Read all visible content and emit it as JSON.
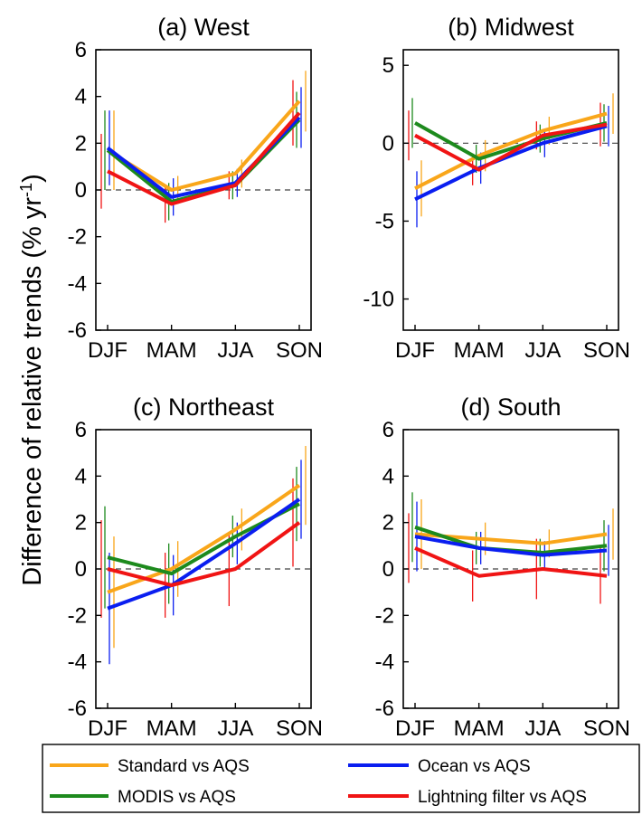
{
  "ylabel_main": "Difference of relative trends (% yr",
  "ylabel_sup": "-1",
  "ylabel_close": ")",
  "colors": {
    "Standard vs AQS": "#f9a61a",
    "Ocean vs AQS": "#0a1ef0",
    "MODIS vs AQS": "#1d8a1d",
    "Lightning filter vs AQS": "#f01414",
    "zero_line": "#444444"
  },
  "legend": [
    {
      "name": "Standard vs AQS",
      "key": "standard"
    },
    {
      "name": "Ocean vs AQS",
      "key": "ocean"
    },
    {
      "name": "MODIS vs AQS",
      "key": "modis"
    },
    {
      "name": "Lightning filter vs AQS",
      "key": "lightning"
    }
  ],
  "chart_data": [
    {
      "type": "line",
      "title": "(a) West",
      "categories": [
        "DJF",
        "MAM",
        "JJA",
        "SON"
      ],
      "ylim": [
        -6,
        6
      ],
      "yticks": [
        -6,
        -4,
        -2,
        0,
        2,
        4,
        6
      ],
      "yticklabels": [
        "-6",
        "-4",
        "-2",
        "0",
        "2",
        "4",
        "6"
      ],
      "series": [
        {
          "name": "Standard vs AQS",
          "values": [
            1.7,
            0.0,
            0.7,
            3.8
          ],
          "err": [
            1.7,
            0.6,
            0.6,
            1.3
          ]
        },
        {
          "name": "MODIS vs AQS",
          "values": [
            1.7,
            -0.5,
            0.2,
            3.0
          ],
          "err": [
            1.7,
            0.8,
            0.6,
            1.2
          ]
        },
        {
          "name": "Ocean vs AQS",
          "values": [
            1.8,
            -0.3,
            0.3,
            3.1
          ],
          "err": [
            1.6,
            0.8,
            0.6,
            1.3
          ]
        },
        {
          "name": "Lightning filter vs AQS",
          "values": [
            0.8,
            -0.6,
            0.2,
            3.3
          ],
          "err": [
            1.6,
            0.8,
            0.6,
            1.4
          ]
        }
      ]
    },
    {
      "type": "line",
      "title": "(b) Midwest",
      "categories": [
        "DJF",
        "MAM",
        "JJA",
        "SON"
      ],
      "ylim": [
        -12,
        6
      ],
      "yticks": [
        -10,
        -5,
        0,
        5
      ],
      "yticklabels": [
        "-10",
        "-5",
        "0",
        "5"
      ],
      "series": [
        {
          "name": "Standard vs AQS",
          "values": [
            -2.9,
            -0.8,
            0.8,
            1.9
          ],
          "err": [
            1.8,
            1.0,
            0.9,
            1.3
          ]
        },
        {
          "name": "MODIS vs AQS",
          "values": [
            1.3,
            -1.0,
            0.3,
            1.3
          ],
          "err": [
            1.6,
            0.9,
            0.9,
            1.2
          ]
        },
        {
          "name": "Ocean vs AQS",
          "values": [
            -3.6,
            -1.6,
            0.0,
            1.1
          ],
          "err": [
            1.8,
            1.0,
            0.9,
            1.3
          ]
        },
        {
          "name": "Lightning filter vs AQS",
          "values": [
            0.5,
            -1.7,
            0.5,
            1.2
          ],
          "err": [
            1.6,
            1.0,
            0.9,
            1.4
          ]
        }
      ]
    },
    {
      "type": "line",
      "title": "(c) Northeast",
      "categories": [
        "DJF",
        "MAM",
        "JJA",
        "SON"
      ],
      "ylim": [
        -6,
        6
      ],
      "yticks": [
        -6,
        -4,
        -2,
        0,
        2,
        4,
        6
      ],
      "yticklabels": [
        "-6",
        "-4",
        "-2",
        "0",
        "2",
        "4",
        "6"
      ],
      "series": [
        {
          "name": "Standard vs AQS",
          "values": [
            -1.0,
            0.0,
            1.7,
            3.6
          ],
          "err": [
            2.4,
            1.2,
            0.9,
            1.7
          ]
        },
        {
          "name": "MODIS vs AQS",
          "values": [
            0.5,
            -0.2,
            1.4,
            2.8
          ],
          "err": [
            2.2,
            1.3,
            0.9,
            1.6
          ]
        },
        {
          "name": "Ocean vs AQS",
          "values": [
            -1.7,
            -0.7,
            1.1,
            3.0
          ],
          "err": [
            2.4,
            1.3,
            0.9,
            1.7
          ]
        },
        {
          "name": "Lightning filter vs AQS",
          "values": [
            0.0,
            -0.7,
            0.0,
            2.0
          ],
          "err": [
            2.1,
            1.4,
            1.6,
            1.9
          ]
        }
      ]
    },
    {
      "type": "line",
      "title": "(d) South",
      "categories": [
        "DJF",
        "MAM",
        "JJA",
        "SON"
      ],
      "ylim": [
        -6,
        6
      ],
      "yticks": [
        -6,
        -4,
        -2,
        0,
        2,
        4,
        6
      ],
      "yticklabels": [
        "-6",
        "-4",
        "-2",
        "0",
        "2",
        "4",
        "6"
      ],
      "series": [
        {
          "name": "Standard vs AQS",
          "values": [
            1.5,
            1.3,
            1.1,
            1.5
          ],
          "err": [
            1.5,
            0.7,
            0.6,
            1.1
          ]
        },
        {
          "name": "MODIS vs AQS",
          "values": [
            1.8,
            0.9,
            0.7,
            1.0
          ],
          "err": [
            1.5,
            0.7,
            0.6,
            1.1
          ]
        },
        {
          "name": "Ocean vs AQS",
          "values": [
            1.4,
            0.9,
            0.6,
            0.8
          ],
          "err": [
            1.5,
            0.7,
            0.6,
            1.1
          ]
        },
        {
          "name": "Lightning filter vs AQS",
          "values": [
            0.9,
            -0.3,
            0.0,
            -0.3
          ],
          "err": [
            1.5,
            1.1,
            1.3,
            1.2
          ]
        }
      ]
    }
  ]
}
